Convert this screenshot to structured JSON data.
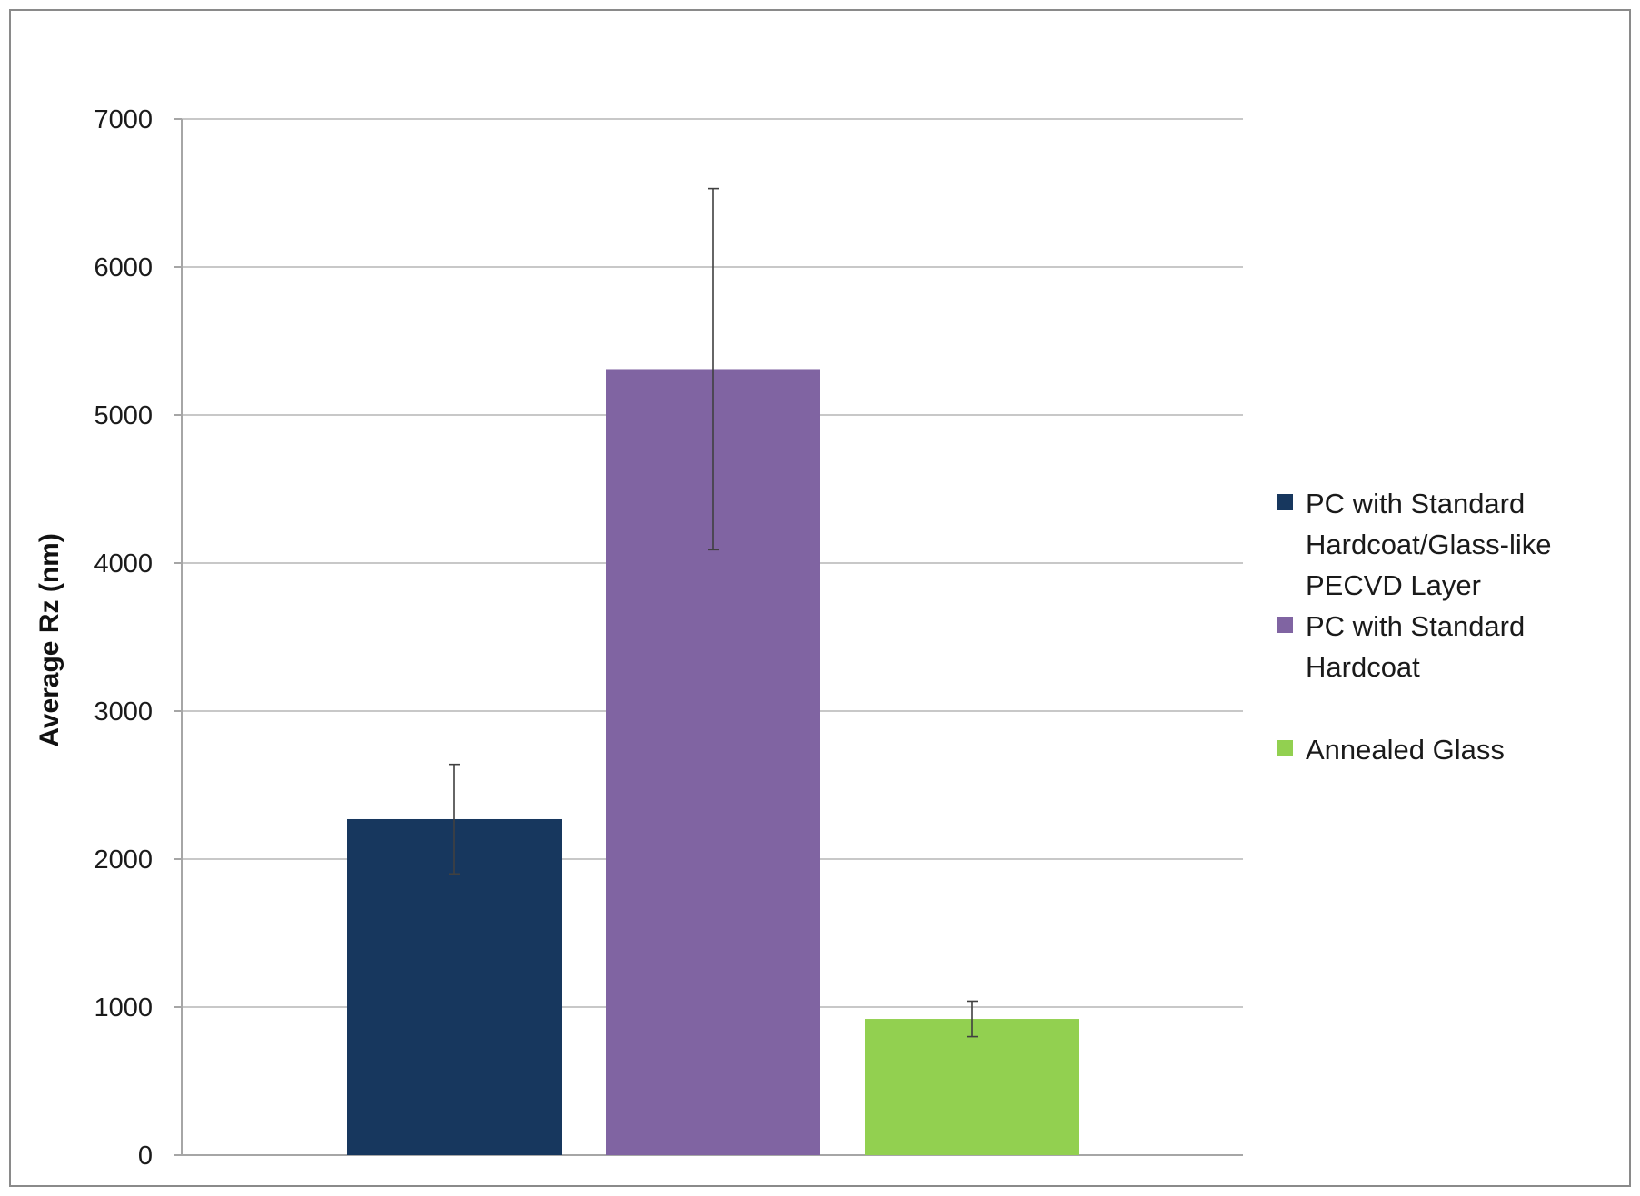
{
  "chart_data": {
    "type": "bar",
    "title": "",
    "xlabel": "",
    "ylabel": "Average Rz (nm)",
    "ylim": [
      0,
      7000
    ],
    "yticks": [
      0,
      1000,
      2000,
      3000,
      4000,
      5000,
      6000,
      7000
    ],
    "grid": true,
    "legend_position": "right",
    "series": [
      {
        "name_lines": [
          "PC with Standard",
          "Hardcoat/Glass-like",
          "PECVD Layer"
        ],
        "value": 2270,
        "error_low": 1900,
        "error_high": 2640,
        "color": "#17375e"
      },
      {
        "name_lines": [
          "PC with Standard",
          "Hardcoat"
        ],
        "value": 5310,
        "error_low": 4090,
        "error_high": 6530,
        "color": "#8064a2"
      },
      {
        "name_lines": [
          "Annealed Glass"
        ],
        "value": 920,
        "error_low": 800,
        "error_high": 1040,
        "color": "#92d050"
      }
    ]
  }
}
